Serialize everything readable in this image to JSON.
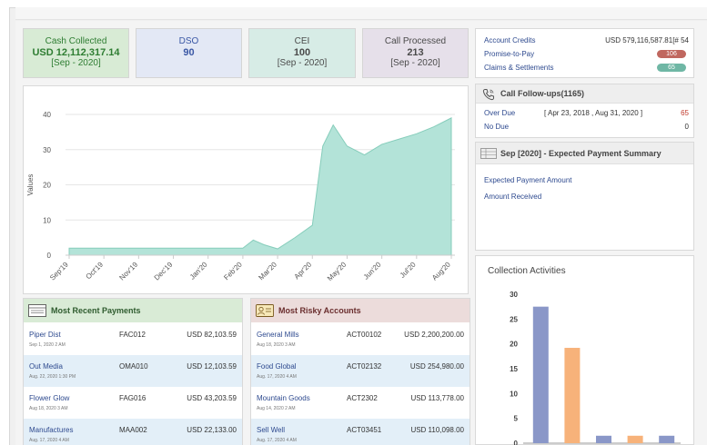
{
  "kpis": [
    {
      "label": "Cash Collected",
      "value": "USD 12,112,317.14",
      "sub": "[Sep - 2020]"
    },
    {
      "label": "DSO",
      "value": "90",
      "sub": ""
    },
    {
      "label": "CEI",
      "value": "100",
      "sub": "[Sep - 2020]"
    },
    {
      "label": "Call Processed",
      "value": "213",
      "sub": "[Sep - 2020]"
    }
  ],
  "summary": {
    "account_credits_label": "Account Credits",
    "account_credits_value": "USD 579,116,587.81[# 54",
    "promise_label": "Promise-to-Pay",
    "promise_count": "106",
    "claims_label": "Claims & Settlements",
    "claims_count": "65"
  },
  "followups": {
    "title": "Call Follow-ups(1165)",
    "overdue_label": "Over Due",
    "overdue_range": "[ Apr 23, 2018 , Aug 31, 2020 ]",
    "overdue_count": "65",
    "nodue_label": "No Due",
    "nodue_count": "0"
  },
  "expected": {
    "title": "Sep [2020] - Expected Payment Summary",
    "amount_label": "Expected Payment Amount",
    "received_label": "Amount Received"
  },
  "collection": {
    "title": "Collection Activities"
  },
  "recent_payments": {
    "title": "Most Recent Payments",
    "rows": [
      {
        "name": "Piper Dist",
        "date": "Sep 1, 2020 2 AM",
        "code": "FAC012",
        "amount": "USD 82,103.59"
      },
      {
        "name": "Out Media",
        "date": "Aug. 22, 2020 1:30 PM",
        "code": "OMA010",
        "amount": "USD 12,103.59"
      },
      {
        "name": "Flower  Glow",
        "date": "Aug 18, 2020 3 AM",
        "code": "FAG016",
        "amount": "USD 43,203.59"
      },
      {
        "name": "Manufactures",
        "date": "Aug. 17, 2020 4 AM",
        "code": "MAA002",
        "amount": "USD 22,133.00"
      }
    ]
  },
  "risky_accounts": {
    "title": "Most Risky Accounts",
    "rows": [
      {
        "name": "General Mills",
        "date": "Aug 18, 2020 3 AM",
        "code": "ACT00102",
        "amount": "USD 2,200,200.00"
      },
      {
        "name": "Food Global",
        "date": "Aug. 17, 2020 4 AM",
        "code": "ACT02132",
        "amount": "USD 254,980.00"
      },
      {
        "name": "Mountain Goods",
        "date": "Aug 14, 2020 2 AM",
        "code": "ACT2302",
        "amount": "USD 113,778.00"
      },
      {
        "name": "Sell Well",
        "date": "Aug. 17, 2020 4 AM",
        "code": "ACT03451",
        "amount": "USD 110,098.00"
      }
    ]
  },
  "colors": {
    "area_fill": "#b3e3d8",
    "area_stroke": "#86cdbb",
    "bar_blue": "#8a97c8",
    "bar_orange": "#f7b27a",
    "pill_red": "#c0675f",
    "pill_green": "#6fb7a5"
  },
  "chart_data": [
    {
      "type": "area",
      "title": "",
      "xlabel": "",
      "ylabel": "Values",
      "ylim": [
        0,
        40
      ],
      "yticks": [
        0,
        10,
        20,
        30,
        40
      ],
      "categories": [
        "Sep'19",
        "Oct'19",
        "Nov'19",
        "Dec'19",
        "Jan'20",
        "Feb'20",
        "Mar'20",
        "Apr'20",
        "May'20",
        "Jun'20",
        "Jul'20",
        "Aug'20"
      ],
      "x": [
        0,
        0.5,
        1,
        1.5,
        2,
        2.5,
        3,
        3.5,
        4,
        4.5,
        5,
        5.3,
        5.6,
        6,
        6.5,
        7,
        7.3,
        7.6,
        8,
        8.5,
        9,
        9.5,
        10,
        10.5,
        11
      ],
      "values": [
        2,
        2,
        2,
        2,
        2,
        2,
        2,
        2,
        2,
        2,
        2,
        4.3,
        3,
        1.8,
        5,
        8.5,
        31,
        37,
        31,
        28.5,
        31.5,
        33,
        34.5,
        36.5,
        39
      ],
      "grid": true
    },
    {
      "type": "bar",
      "title": "Collection Activities",
      "ylim": [
        0,
        30
      ],
      "yticks": [
        0,
        5,
        10,
        15,
        20,
        25,
        30
      ],
      "categories": [
        "",
        "",
        "",
        "",
        ""
      ],
      "values": [
        27.5,
        19.2,
        1.5,
        1.5,
        1.5
      ],
      "bar_colors": [
        "#8a97c8",
        "#f7b27a",
        "#8a97c8",
        "#f7b27a",
        "#8a97c8"
      ]
    }
  ]
}
